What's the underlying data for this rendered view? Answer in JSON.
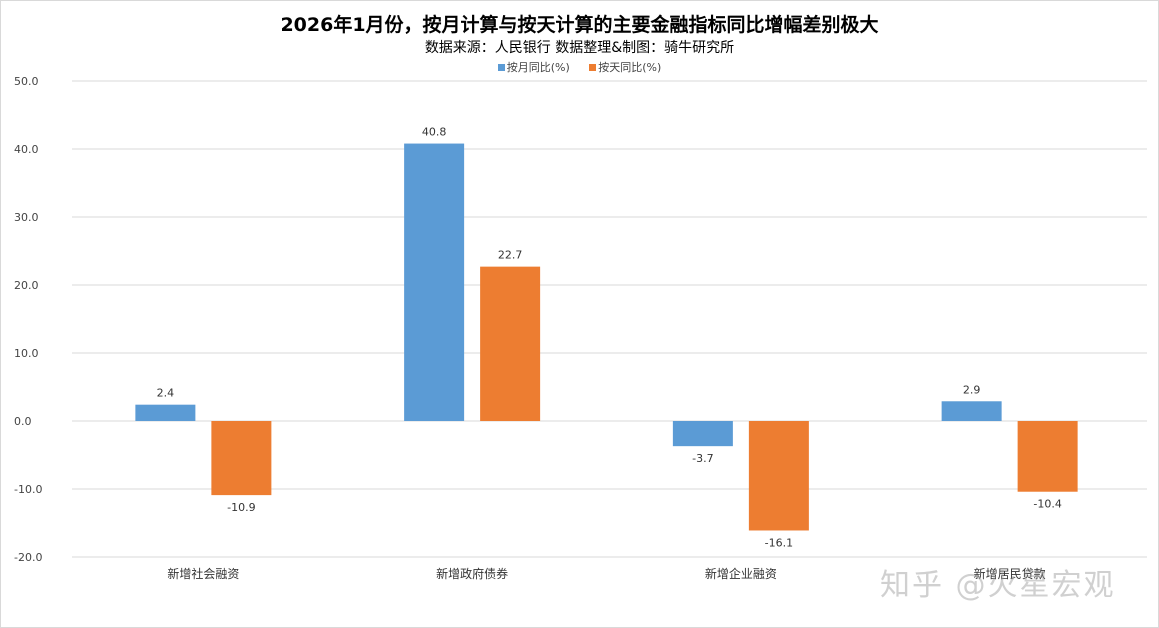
{
  "chart_data": {
    "type": "bar",
    "title": "2026年1月份，按月计算与按天计算的主要金融指标同比增幅差别极大",
    "subtitle": "数据来源：人民银行      数据整理&制图：骑牛研究所",
    "categories": [
      "新增社会融资",
      "新增政府债券",
      "新增企业融资",
      "新增居民贷款"
    ],
    "series": [
      {
        "name": "按月同比(%)",
        "color": "#5b9bd5",
        "values": [
          2.4,
          40.8,
          -3.7,
          2.9
        ]
      },
      {
        "name": "按天同比(%)",
        "color": "#ed7d31",
        "values": [
          -10.9,
          22.7,
          -16.1,
          -10.4
        ]
      }
    ],
    "ylim": [
      -20,
      50
    ],
    "yticks": [
      "-20.0",
      "-10.0",
      "0.0",
      "10.0",
      "20.0",
      "30.0",
      "40.0",
      "50.0"
    ],
    "grid": true,
    "legend": "top-center",
    "xlabel": "",
    "ylabel": ""
  },
  "watermark": "知乎 @火星宏观"
}
